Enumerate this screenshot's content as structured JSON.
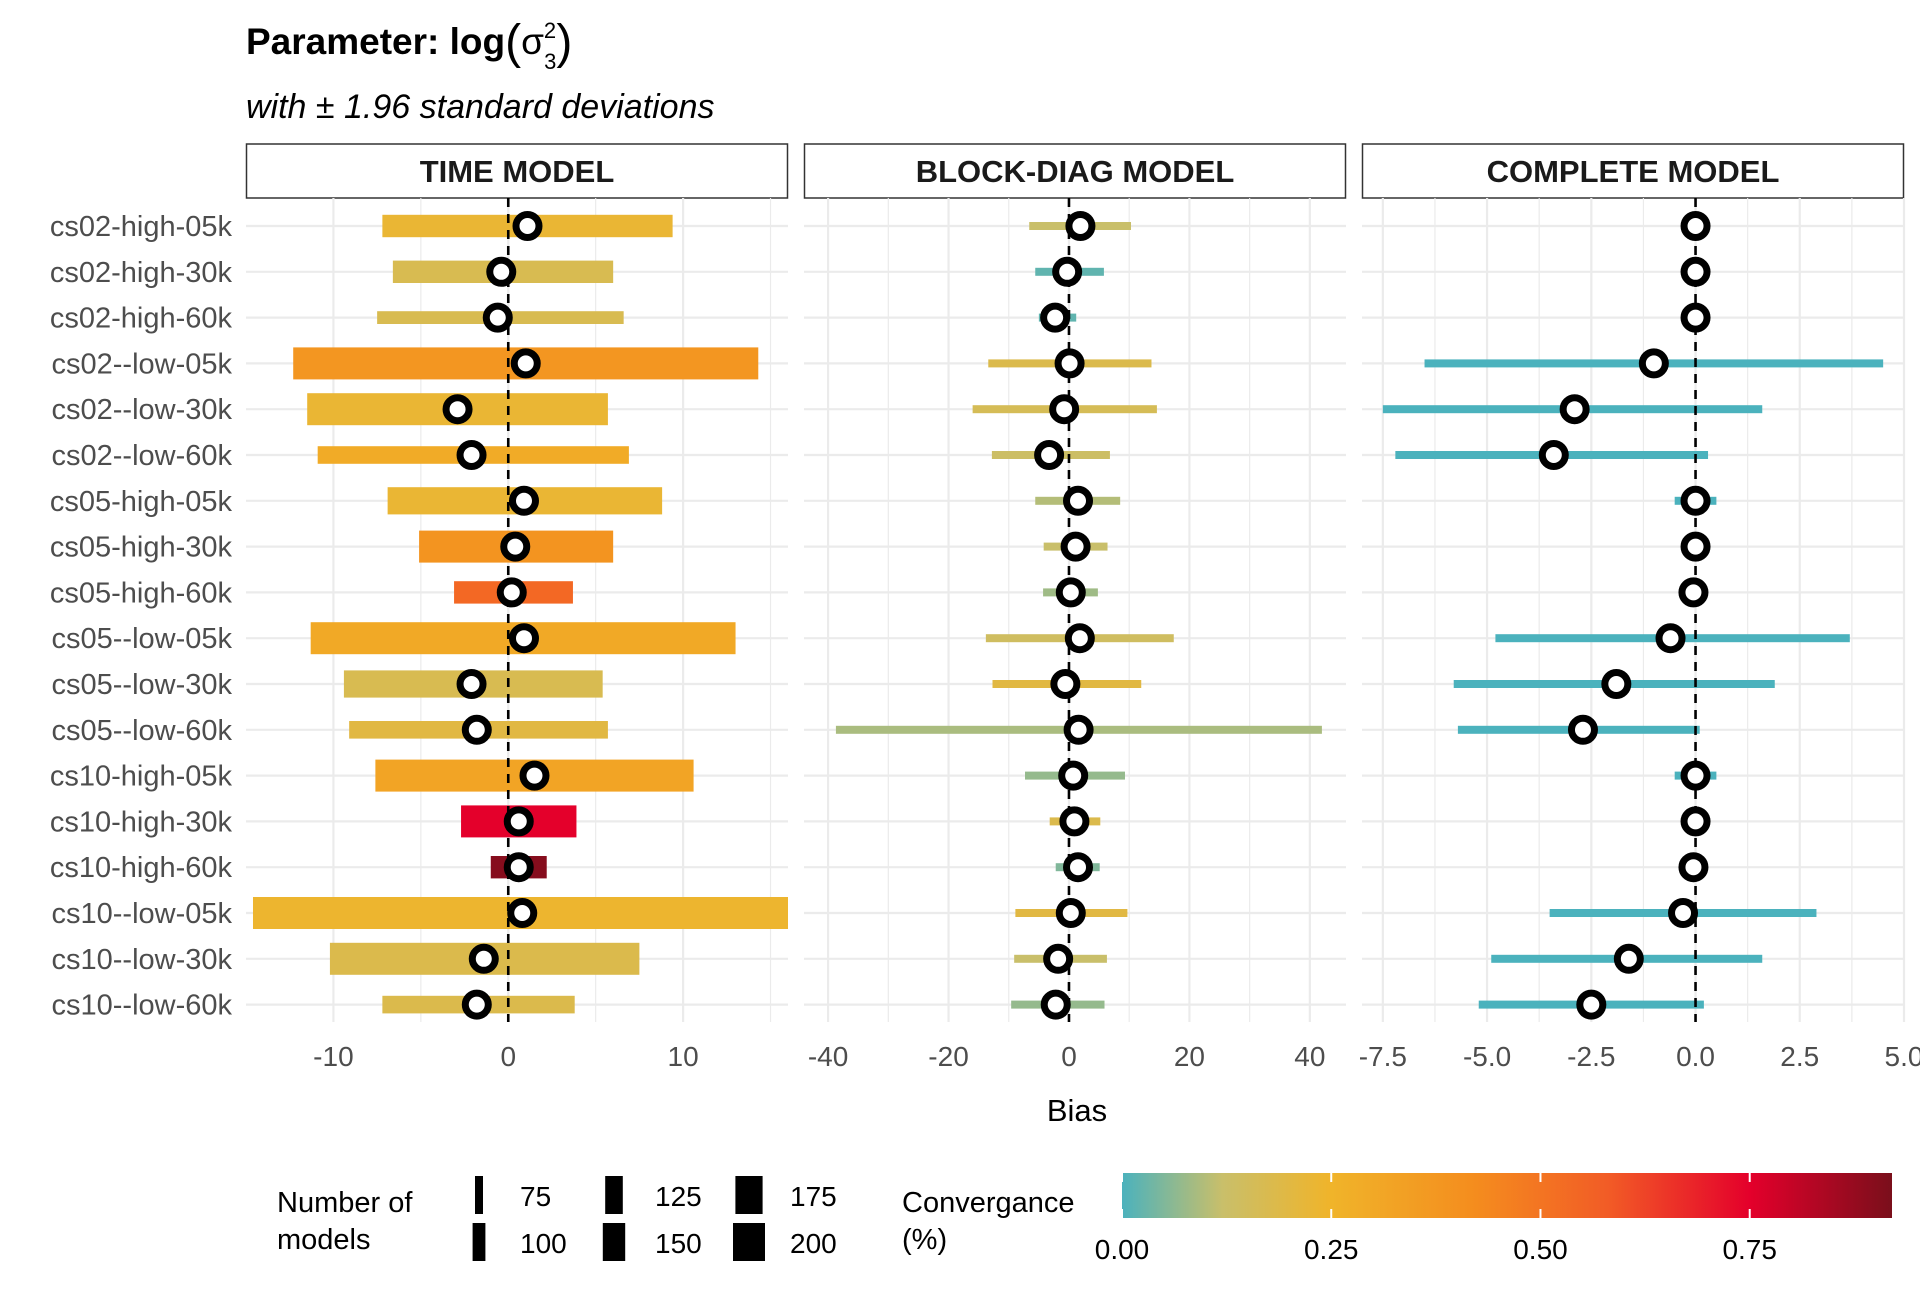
{
  "title_prefix": "Parameter: log",
  "title_symbol": "σ",
  "title_superscript": "2",
  "title_subscript": "3",
  "subtitle": "with ± 1.96 standard deviations",
  "xlabel": "Bias",
  "colors": {
    "zero_line": "#000000",
    "grid": "#ebebeb",
    "strip_border": "#333333",
    "point_fill": "#ffffff",
    "point_stroke": "#000000"
  },
  "legend": {
    "size_title": [
      "Number of",
      "models"
    ],
    "size_entries": [
      75,
      100,
      125,
      150,
      175,
      200
    ],
    "color_title": [
      "Convergance",
      "(%)"
    ],
    "color_ticks": [
      "0.00",
      "0.25",
      "0.50",
      "0.75"
    ],
    "color_range": [
      0,
      0.92
    ],
    "color_stops": [
      {
        "value": 0.0,
        "color": "#4bb2bd"
      },
      {
        "value": 0.12,
        "color": "#c9bf6a"
      },
      {
        "value": 0.25,
        "color": "#f0b42a"
      },
      {
        "value": 0.42,
        "color": "#f48d1e"
      },
      {
        "value": 0.58,
        "color": "#f25c26"
      },
      {
        "value": 0.75,
        "color": "#e4002b"
      },
      {
        "value": 0.92,
        "color": "#7a0f1b"
      }
    ]
  },
  "chart_data": {
    "type": "interval",
    "categories": [
      "cs02-high-05k",
      "cs02-high-30k",
      "cs02-high-60k",
      "cs02--low-05k",
      "cs02--low-30k",
      "cs02--low-60k",
      "cs05-high-05k",
      "cs05-high-30k",
      "cs05-high-60k",
      "cs05--low-05k",
      "cs05--low-30k",
      "cs05--low-60k",
      "cs10-high-05k",
      "cs10-high-30k",
      "cs10-high-60k",
      "cs10--low-05k",
      "cs10--low-30k",
      "cs10--low-60k"
    ],
    "panels": [
      {
        "title": "TIME MODEL",
        "xlim": [
          -15,
          16
        ],
        "xticks": [
          -10,
          0,
          10
        ],
        "xtick_labels": [
          "-10",
          "0",
          "10"
        ],
        "estimate": [
          1.1,
          -0.4,
          -0.6,
          1.0,
          -2.9,
          -2.1,
          0.9,
          0.4,
          0.2,
          0.9,
          -2.1,
          -1.8,
          1.5,
          0.6,
          0.6,
          0.8,
          -1.4,
          -1.8
        ],
        "lower": [
          -7.2,
          -6.6,
          -7.5,
          -12.3,
          -11.5,
          -10.9,
          -6.9,
          -5.1,
          -3.1,
          -11.3,
          -9.4,
          -9.1,
          -7.6,
          -2.7,
          -1.0,
          -14.6,
          -10.2,
          -7.2
        ],
        "upper": [
          9.4,
          6.0,
          6.6,
          14.3,
          5.7,
          6.9,
          8.8,
          6.0,
          3.7,
          13.0,
          5.4,
          5.7,
          10.6,
          3.9,
          2.2,
          16.0,
          7.5,
          3.8
        ],
        "convergence": [
          0.23,
          0.17,
          0.17,
          0.38,
          0.23,
          0.29,
          0.23,
          0.39,
          0.54,
          0.3,
          0.17,
          0.2,
          0.32,
          0.75,
          0.9,
          0.24,
          0.18,
          0.18
        ],
        "n_models": [
          150,
          150,
          100,
          200,
          200,
          125,
          175,
          200,
          150,
          200,
          175,
          125,
          200,
          200,
          150,
          200,
          200,
          125
        ]
      },
      {
        "title": "BLOCK-DIAG MODEL",
        "xlim": [
          -44,
          46
        ],
        "xticks": [
          -40,
          -20,
          0,
          20,
          40
        ],
        "xtick_labels": [
          "-40",
          "-20",
          "0",
          "20",
          "40"
        ],
        "estimate": [
          1.9,
          -0.3,
          -2.3,
          0.1,
          -0.8,
          -3.3,
          1.5,
          1.1,
          0.3,
          1.8,
          -0.6,
          1.6,
          0.7,
          0.9,
          1.5,
          0.3,
          -1.8,
          -2.2
        ],
        "lower": [
          -6.6,
          -5.6,
          -5.0,
          -13.4,
          -16.0,
          -12.8,
          -5.6,
          -4.2,
          -4.3,
          -13.8,
          -12.7,
          -38.7,
          -7.3,
          -3.2,
          -2.2,
          -8.9,
          -9.1,
          -9.6
        ],
        "upper": [
          10.3,
          5.8,
          1.2,
          13.7,
          14.6,
          6.8,
          8.5,
          6.4,
          4.8,
          17.4,
          12.0,
          42.0,
          9.3,
          5.2,
          5.1,
          9.7,
          6.3,
          5.9
        ],
        "convergence": [
          0.12,
          0.02,
          0.02,
          0.18,
          0.16,
          0.13,
          0.1,
          0.12,
          0.08,
          0.14,
          0.2,
          0.09,
          0.07,
          0.18,
          0.05,
          0.2,
          0.12,
          0.07
        ],
        "n_models": [
          75,
          75,
          75,
          75,
          75,
          75,
          75,
          75,
          75,
          75,
          75,
          75,
          75,
          75,
          75,
          75,
          75,
          75
        ]
      },
      {
        "title": "COMPLETE MODEL",
        "xlim": [
          -8.0,
          5.0
        ],
        "xticks": [
          -7.5,
          -5.0,
          -2.5,
          0.0,
          2.5,
          5.0
        ],
        "xtick_labels": [
          "-7.5",
          "-5.0",
          "-2.5",
          "0.0",
          "2.5",
          "5.0"
        ],
        "estimate": [
          0.0,
          0.0,
          0.0,
          -1.0,
          -2.9,
          -3.4,
          0.0,
          0.0,
          -0.05,
          -0.6,
          -1.9,
          -2.7,
          0.0,
          0.0,
          -0.05,
          -0.3,
          -1.6,
          -2.5
        ],
        "lower": [
          0.0,
          0.0,
          0.0,
          -6.5,
          -7.5,
          -7.2,
          -0.5,
          0.0,
          0.0,
          -4.8,
          -5.8,
          -5.7,
          -0.5,
          0.0,
          0.0,
          -3.5,
          -4.9,
          -5.2
        ],
        "upper": [
          0.0,
          0.0,
          0.0,
          4.5,
          1.6,
          0.3,
          0.5,
          0.0,
          0.0,
          3.7,
          1.9,
          0.1,
          0.5,
          0.0,
          0.0,
          2.9,
          1.6,
          0.2
        ],
        "convergence": [
          0.0,
          0.0,
          0.0,
          0.0,
          0.0,
          0.0,
          0.0,
          0.0,
          0.0,
          0.0,
          0.0,
          0.0,
          0.0,
          0.0,
          0.0,
          0.0,
          0.0,
          0.0
        ],
        "n_models": [
          75,
          75,
          75,
          75,
          75,
          75,
          75,
          75,
          75,
          75,
          75,
          75,
          75,
          75,
          75,
          75,
          75,
          75
        ]
      }
    ]
  }
}
